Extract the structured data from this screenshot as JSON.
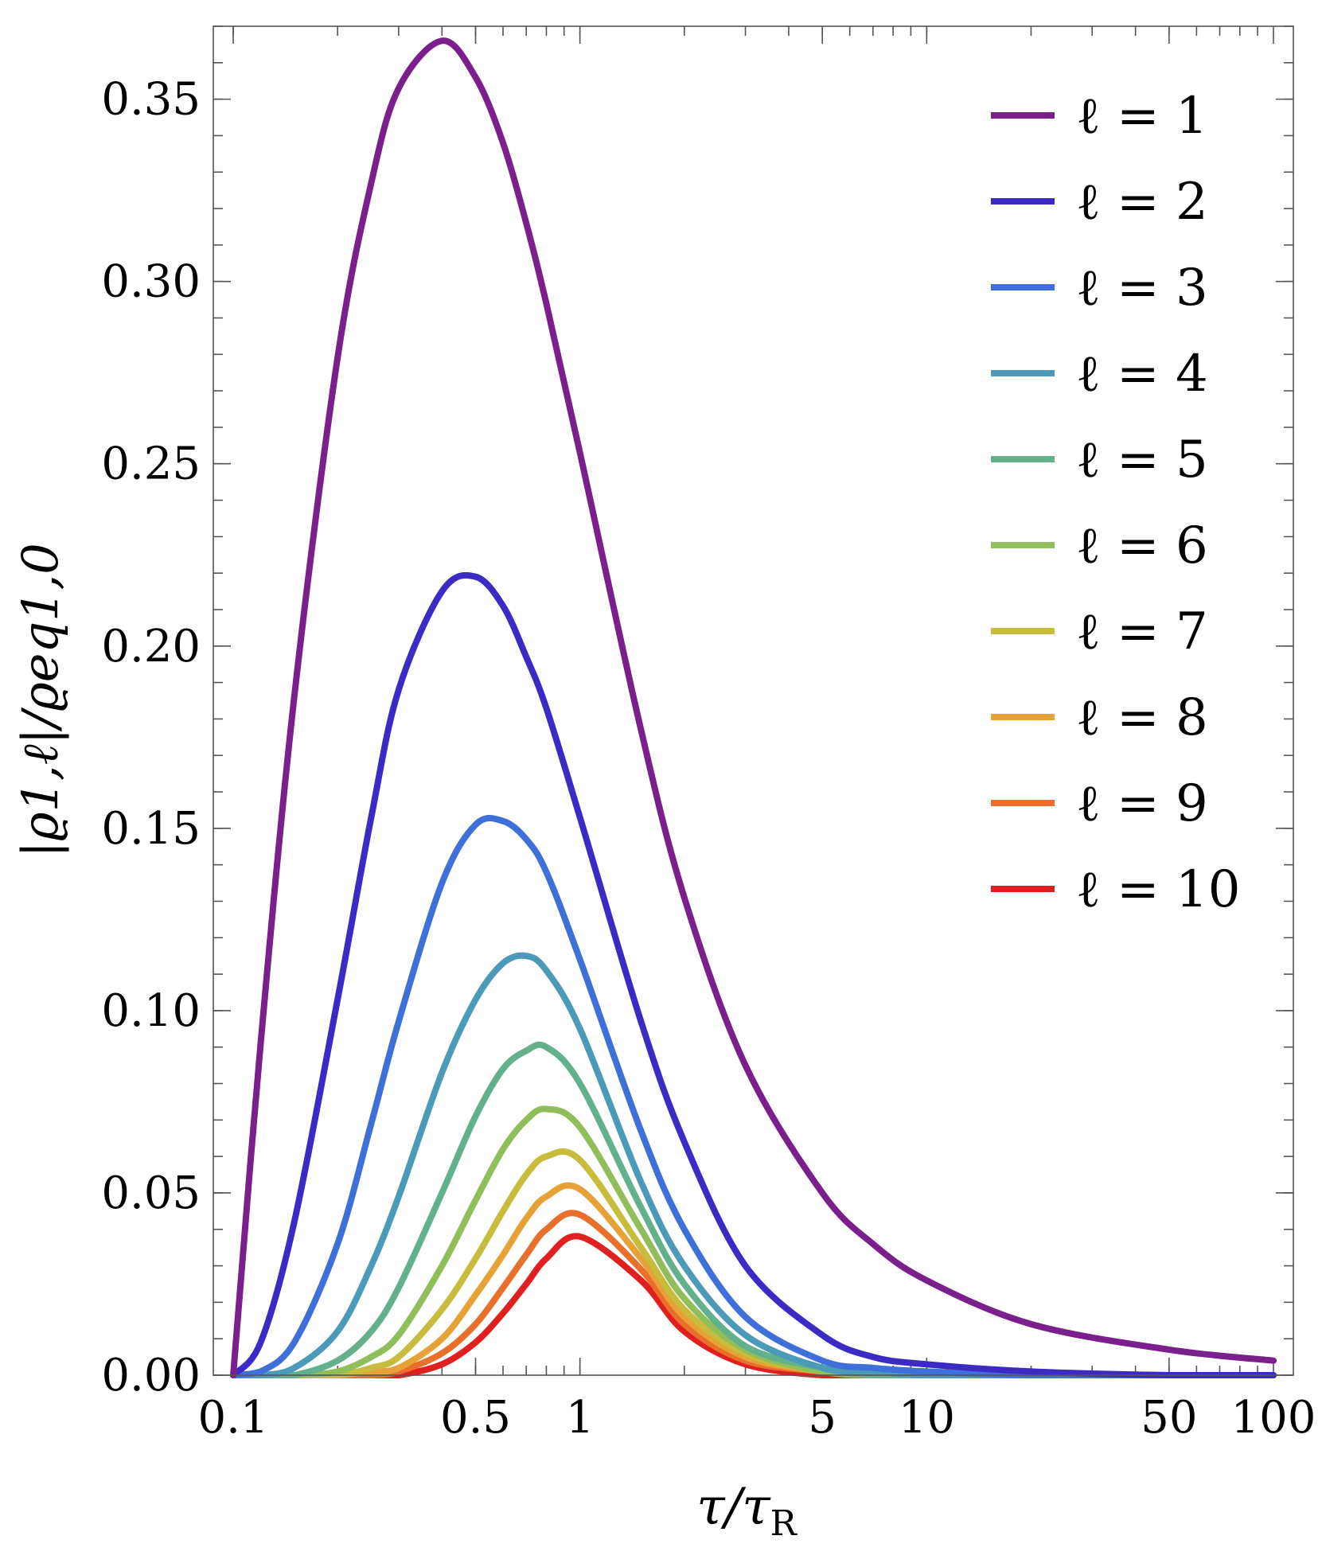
{
  "chart_data": {
    "type": "line",
    "xscale": "log",
    "xlim": [
      0.1,
      100
    ],
    "ylim": [
      0,
      0.37
    ],
    "grid": false,
    "legend_position": "top-right",
    "xlabel": {
      "main": "τ/τ",
      "sub": "R"
    },
    "ylabel": {
      "text": "|ϱ1,ℓ|/ϱeq1,0"
    },
    "x_ticks": [
      {
        "value": 0.1,
        "label": "0.1"
      },
      {
        "value": 0.5,
        "label": "0.5"
      },
      {
        "value": 1,
        "label": "1"
      },
      {
        "value": 5,
        "label": "5"
      },
      {
        "value": 10,
        "label": "10"
      },
      {
        "value": 50,
        "label": "50"
      },
      {
        "value": 100,
        "label": "100"
      }
    ],
    "y_ticks": [
      {
        "value": 0.0,
        "label": "0.00"
      },
      {
        "value": 0.05,
        "label": "0.05"
      },
      {
        "value": 0.1,
        "label": "0.10"
      },
      {
        "value": 0.15,
        "label": "0.15"
      },
      {
        "value": 0.2,
        "label": "0.20"
      },
      {
        "value": 0.25,
        "label": "0.25"
      },
      {
        "value": 0.3,
        "label": "0.30"
      },
      {
        "value": 0.35,
        "label": "0.35"
      }
    ],
    "x": [
      0.1,
      0.12,
      0.15,
      0.2,
      0.25,
      0.3,
      0.4,
      0.5,
      0.6,
      0.7,
      0.8,
      1.0,
      1.5,
      2,
      3,
      5,
      7,
      10,
      20,
      50,
      100
    ],
    "series": [
      {
        "name": "ℓ = 1",
        "color": "#7b1f8c",
        "values": [
          0.0,
          0.091,
          0.186,
          0.279,
          0.327,
          0.353,
          0.366,
          0.356,
          0.338,
          0.316,
          0.294,
          0.253,
          0.177,
          0.131,
          0.085,
          0.05,
          0.036,
          0.026,
          0.014,
          0.007,
          0.004
        ]
      },
      {
        "name": "ℓ = 2",
        "color": "#3b2bc4",
        "values": [
          0.0,
          0.009,
          0.042,
          0.103,
          0.153,
          0.188,
          0.215,
          0.219,
          0.211,
          0.197,
          0.183,
          0.153,
          0.097,
          0.064,
          0.03,
          0.011,
          0.005,
          0.003,
          0.001,
          0.0,
          0.0
        ]
      },
      {
        "name": "ℓ = 3",
        "color": "#3f6fd8",
        "values": [
          0.0,
          0.001,
          0.009,
          0.036,
          0.069,
          0.097,
          0.135,
          0.151,
          0.152,
          0.147,
          0.138,
          0.114,
          0.067,
          0.04,
          0.016,
          0.004,
          0.002,
          0.001,
          0.0,
          0.0,
          0.0
        ]
      },
      {
        "name": "ℓ = 4",
        "color": "#4b9ab8",
        "values": [
          0.0,
          0.0,
          0.002,
          0.012,
          0.03,
          0.049,
          0.083,
          0.103,
          0.113,
          0.115,
          0.111,
          0.095,
          0.053,
          0.03,
          0.011,
          0.002,
          0.001,
          0.0,
          0.0,
          0.0,
          0.0
        ]
      },
      {
        "name": "ℓ = 5",
        "color": "#63b08c",
        "values": [
          0.0,
          0.0,
          0.0,
          0.004,
          0.012,
          0.024,
          0.05,
          0.071,
          0.084,
          0.089,
          0.09,
          0.08,
          0.046,
          0.025,
          0.008,
          0.002,
          0.0,
          0.0,
          0.0,
          0.0,
          0.0
        ]
      },
      {
        "name": "ℓ = 6",
        "color": "#8fbe5a",
        "values": [
          0.0,
          0.0,
          0.0,
          0.001,
          0.005,
          0.011,
          0.03,
          0.048,
          0.062,
          0.07,
          0.073,
          0.068,
          0.04,
          0.021,
          0.007,
          0.001,
          0.0,
          0.0,
          0.0,
          0.0,
          0.0
        ]
      },
      {
        "name": "ℓ = 7",
        "color": "#c7bc3c",
        "values": [
          0.0,
          0.0,
          0.0,
          0.0,
          0.002,
          0.005,
          0.018,
          0.032,
          0.045,
          0.055,
          0.06,
          0.059,
          0.035,
          0.018,
          0.006,
          0.001,
          0.0,
          0.0,
          0.0,
          0.0,
          0.0
        ]
      },
      {
        "name": "ℓ = 8",
        "color": "#e6a236",
        "values": [
          0.0,
          0.0,
          0.0,
          0.0,
          0.001,
          0.002,
          0.01,
          0.022,
          0.033,
          0.043,
          0.049,
          0.051,
          0.032,
          0.016,
          0.005,
          0.001,
          0.0,
          0.0,
          0.0,
          0.0,
          0.0
        ]
      },
      {
        "name": "ℓ = 9",
        "color": "#e8702c",
        "values": [
          0.0,
          0.0,
          0.0,
          0.0,
          0.0,
          0.001,
          0.006,
          0.014,
          0.024,
          0.033,
          0.04,
          0.044,
          0.029,
          0.014,
          0.004,
          0.001,
          0.0,
          0.0,
          0.0,
          0.0,
          0.0
        ]
      },
      {
        "name": "ℓ = 10",
        "color": "#e0201e",
        "values": [
          0.0,
          0.0,
          0.0,
          0.0,
          0.0,
          0.0,
          0.003,
          0.009,
          0.017,
          0.025,
          0.032,
          0.038,
          0.026,
          0.012,
          0.003,
          0.0,
          0.0,
          0.0,
          0.0,
          0.0,
          0.0
        ]
      }
    ]
  }
}
